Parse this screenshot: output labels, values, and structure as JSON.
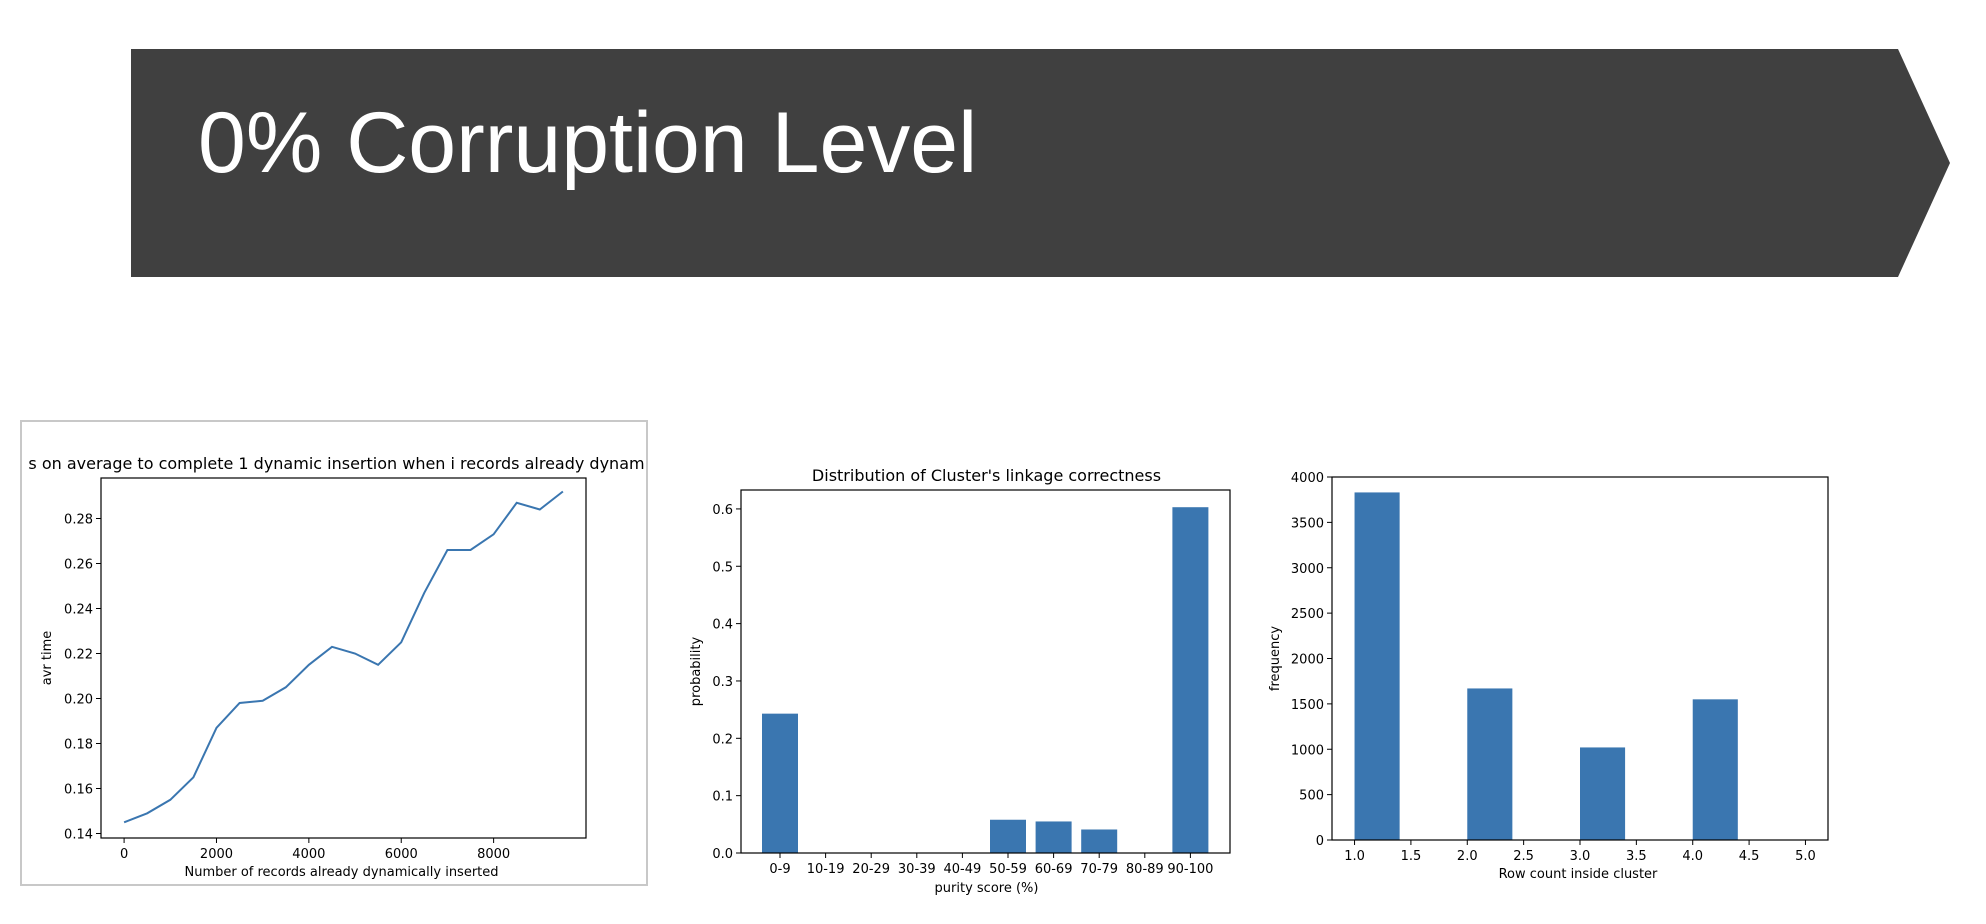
{
  "slide": {
    "title": "0% Corruption Level",
    "banner_color": "#404040"
  },
  "chart_data": [
    {
      "type": "line",
      "title": "s on average to complete 1 dynamic insertion when i records already dynam",
      "xlabel": "Number of records already dynamically inserted",
      "ylabel": "avr time",
      "xlim": [
        -500,
        10000
      ],
      "ylim": [
        0.138,
        0.298
      ],
      "x_ticks": [
        0,
        2000,
        4000,
        6000,
        8000
      ],
      "y_ticks": [
        0.14,
        0.16,
        0.18,
        0.2,
        0.22,
        0.24,
        0.26,
        0.28
      ],
      "y_tick_labels": [
        "0.14",
        "0.16",
        "0.18",
        "0.20",
        "0.22",
        "0.24",
        "0.26",
        "0.28"
      ],
      "color": "#3a76b0",
      "series": [
        {
          "x": [
            0,
            500,
            1000,
            1500,
            2000,
            2500,
            3000,
            3500,
            4000,
            4500,
            5000,
            5500,
            6000,
            6500,
            7000,
            7500,
            8000,
            8500,
            9000,
            9500
          ],
          "y": [
            0.145,
            0.149,
            0.155,
            0.165,
            0.187,
            0.198,
            0.199,
            0.205,
            0.215,
            0.223,
            0.22,
            0.215,
            0.225,
            0.247,
            0.266,
            0.266,
            0.273,
            0.287,
            0.284,
            0.292
          ]
        }
      ]
    },
    {
      "type": "bar",
      "title": "Distribution of Cluster's linkage correctness",
      "xlabel": "purity score (%)",
      "ylabel": "probability",
      "categories": [
        "0-9",
        "10-19",
        "20-29",
        "30-39",
        "40-49",
        "50-59",
        "60-69",
        "70-79",
        "80-89",
        "90-100"
      ],
      "values": [
        0.243,
        0,
        0,
        0,
        0,
        0.058,
        0.055,
        0.041,
        0,
        0.603
      ],
      "ylim": [
        0,
        0.633
      ],
      "y_ticks": [
        0.0,
        0.1,
        0.2,
        0.3,
        0.4,
        0.5,
        0.6
      ],
      "y_tick_labels": [
        "0.0",
        "0.1",
        "0.2",
        "0.3",
        "0.4",
        "0.5",
        "0.6"
      ],
      "color": "#3a76b0"
    },
    {
      "type": "bar",
      "title": "",
      "xlabel": "Row count inside cluster",
      "ylabel": "frequency",
      "bars": [
        {
          "x0": 1.0,
          "x1": 1.4,
          "value": 3830
        },
        {
          "x0": 2.0,
          "x1": 2.4,
          "value": 1670
        },
        {
          "x0": 3.0,
          "x1": 3.4,
          "value": 1020
        },
        {
          "x0": 4.0,
          "x1": 4.4,
          "value": 1550
        }
      ],
      "xlim": [
        0.8,
        5.2
      ],
      "ylim": [
        0,
        4000
      ],
      "x_ticks": [
        1.0,
        1.5,
        2.0,
        2.5,
        3.0,
        3.5,
        4.0,
        4.5,
        5.0
      ],
      "x_tick_labels": [
        "1.0",
        "1.5",
        "2.0",
        "2.5",
        "3.0",
        "3.5",
        "4.0",
        "4.5",
        "5.0"
      ],
      "y_ticks": [
        0,
        500,
        1000,
        1500,
        2000,
        2500,
        3000,
        3500,
        4000
      ],
      "color": "#3a76b0"
    }
  ]
}
